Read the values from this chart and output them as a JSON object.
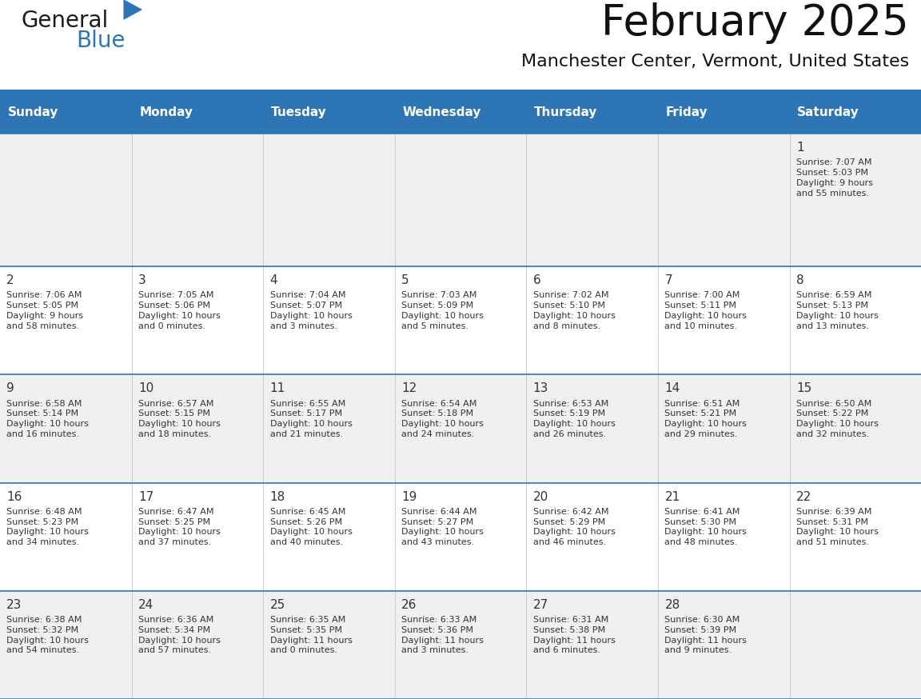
{
  "title": "February 2025",
  "subtitle": "Manchester Center, Vermont, United States",
  "header_color": "#2E75B6",
  "header_text_color": "#FFFFFF",
  "cell_bg_white": "#FFFFFF",
  "cell_bg_gray": "#F0F0F0",
  "border_color": "#2E75B6",
  "text_color": "#333333",
  "day_headers": [
    "Sunday",
    "Monday",
    "Tuesday",
    "Wednesday",
    "Thursday",
    "Friday",
    "Saturday"
  ],
  "weeks": [
    [
      {
        "day": "",
        "info": ""
      },
      {
        "day": "",
        "info": ""
      },
      {
        "day": "",
        "info": ""
      },
      {
        "day": "",
        "info": ""
      },
      {
        "day": "",
        "info": ""
      },
      {
        "day": "",
        "info": ""
      },
      {
        "day": "1",
        "info": "Sunrise: 7:07 AM\nSunset: 5:03 PM\nDaylight: 9 hours\nand 55 minutes."
      }
    ],
    [
      {
        "day": "2",
        "info": "Sunrise: 7:06 AM\nSunset: 5:05 PM\nDaylight: 9 hours\nand 58 minutes."
      },
      {
        "day": "3",
        "info": "Sunrise: 7:05 AM\nSunset: 5:06 PM\nDaylight: 10 hours\nand 0 minutes."
      },
      {
        "day": "4",
        "info": "Sunrise: 7:04 AM\nSunset: 5:07 PM\nDaylight: 10 hours\nand 3 minutes."
      },
      {
        "day": "5",
        "info": "Sunrise: 7:03 AM\nSunset: 5:09 PM\nDaylight: 10 hours\nand 5 minutes."
      },
      {
        "day": "6",
        "info": "Sunrise: 7:02 AM\nSunset: 5:10 PM\nDaylight: 10 hours\nand 8 minutes."
      },
      {
        "day": "7",
        "info": "Sunrise: 7:00 AM\nSunset: 5:11 PM\nDaylight: 10 hours\nand 10 minutes."
      },
      {
        "day": "8",
        "info": "Sunrise: 6:59 AM\nSunset: 5:13 PM\nDaylight: 10 hours\nand 13 minutes."
      }
    ],
    [
      {
        "day": "9",
        "info": "Sunrise: 6:58 AM\nSunset: 5:14 PM\nDaylight: 10 hours\nand 16 minutes."
      },
      {
        "day": "10",
        "info": "Sunrise: 6:57 AM\nSunset: 5:15 PM\nDaylight: 10 hours\nand 18 minutes."
      },
      {
        "day": "11",
        "info": "Sunrise: 6:55 AM\nSunset: 5:17 PM\nDaylight: 10 hours\nand 21 minutes."
      },
      {
        "day": "12",
        "info": "Sunrise: 6:54 AM\nSunset: 5:18 PM\nDaylight: 10 hours\nand 24 minutes."
      },
      {
        "day": "13",
        "info": "Sunrise: 6:53 AM\nSunset: 5:19 PM\nDaylight: 10 hours\nand 26 minutes."
      },
      {
        "day": "14",
        "info": "Sunrise: 6:51 AM\nSunset: 5:21 PM\nDaylight: 10 hours\nand 29 minutes."
      },
      {
        "day": "15",
        "info": "Sunrise: 6:50 AM\nSunset: 5:22 PM\nDaylight: 10 hours\nand 32 minutes."
      }
    ],
    [
      {
        "day": "16",
        "info": "Sunrise: 6:48 AM\nSunset: 5:23 PM\nDaylight: 10 hours\nand 34 minutes."
      },
      {
        "day": "17",
        "info": "Sunrise: 6:47 AM\nSunset: 5:25 PM\nDaylight: 10 hours\nand 37 minutes."
      },
      {
        "day": "18",
        "info": "Sunrise: 6:45 AM\nSunset: 5:26 PM\nDaylight: 10 hours\nand 40 minutes."
      },
      {
        "day": "19",
        "info": "Sunrise: 6:44 AM\nSunset: 5:27 PM\nDaylight: 10 hours\nand 43 minutes."
      },
      {
        "day": "20",
        "info": "Sunrise: 6:42 AM\nSunset: 5:29 PM\nDaylight: 10 hours\nand 46 minutes."
      },
      {
        "day": "21",
        "info": "Sunrise: 6:41 AM\nSunset: 5:30 PM\nDaylight: 10 hours\nand 48 minutes."
      },
      {
        "day": "22",
        "info": "Sunrise: 6:39 AM\nSunset: 5:31 PM\nDaylight: 10 hours\nand 51 minutes."
      }
    ],
    [
      {
        "day": "23",
        "info": "Sunrise: 6:38 AM\nSunset: 5:32 PM\nDaylight: 10 hours\nand 54 minutes."
      },
      {
        "day": "24",
        "info": "Sunrise: 6:36 AM\nSunset: 5:34 PM\nDaylight: 10 hours\nand 57 minutes."
      },
      {
        "day": "25",
        "info": "Sunrise: 6:35 AM\nSunset: 5:35 PM\nDaylight: 11 hours\nand 0 minutes."
      },
      {
        "day": "26",
        "info": "Sunrise: 6:33 AM\nSunset: 5:36 PM\nDaylight: 11 hours\nand 3 minutes."
      },
      {
        "day": "27",
        "info": "Sunrise: 6:31 AM\nSunset: 5:38 PM\nDaylight: 11 hours\nand 6 minutes."
      },
      {
        "day": "28",
        "info": "Sunrise: 6:30 AM\nSunset: 5:39 PM\nDaylight: 11 hours\nand 9 minutes."
      },
      {
        "day": "",
        "info": ""
      }
    ]
  ],
  "logo_color_general": "#1a1a1a",
  "logo_color_blue": "#2E75B6",
  "title_fontsize": 38,
  "subtitle_fontsize": 16,
  "header_fontsize": 11,
  "day_num_fontsize": 11,
  "info_fontsize": 8
}
